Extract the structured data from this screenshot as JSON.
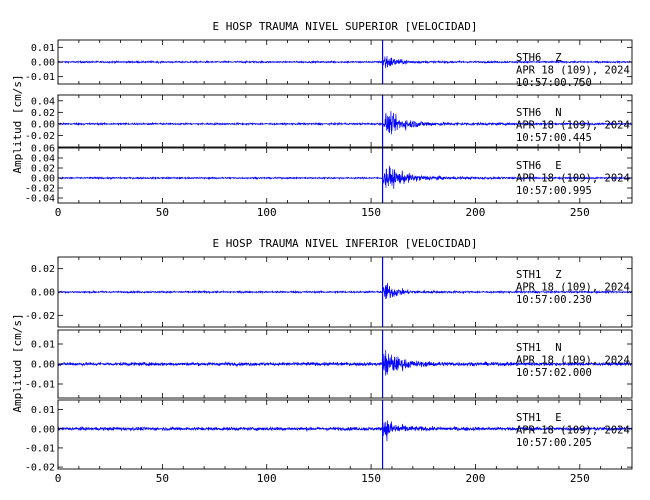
{
  "chart_data": [
    {
      "type": "line",
      "title": "E HOSP TRAUMA NIVEL SUPERIOR [VELOCIDAD]",
      "ylabel": "Amplitud [cm/s]",
      "xlabel": "",
      "xlim": [
        0,
        275
      ],
      "x_ticks": [
        0,
        50,
        100,
        150,
        200,
        250
      ],
      "x_tick_labels": [
        "0",
        "50",
        "100",
        "150",
        "200",
        "250"
      ],
      "line_color": "#0000ff",
      "grid": false,
      "event_x": 155.5,
      "panels": [
        {
          "station": "STH6",
          "component": "Z",
          "date": "APR 18 (109), 2024",
          "time": "10:57:00.750",
          "ylim": [
            -0.015,
            0.015
          ],
          "y_ticks": [
            0.01,
            0.0,
            -0.01
          ],
          "y_tick_labels": [
            "0.01",
            "0.00",
            "-0.01"
          ],
          "noise": 0.0009,
          "peak": 0.013,
          "onset": 155,
          "decay": 4.5
        },
        {
          "station": "STH6",
          "component": "N",
          "date": "APR 18 (109), 2024",
          "time": "10:57:00.445",
          "ylim": [
            -0.04,
            0.05
          ],
          "y_ticks": [
            0.04,
            0.02,
            0.0,
            -0.02
          ],
          "y_tick_labels": [
            "0.04",
            "0.02",
            "0.00",
            "-0.02"
          ],
          "noise": 0.0025,
          "peak": 0.036,
          "onset": 156,
          "decay": 9
        },
        {
          "station": "STH6",
          "component": "E",
          "date": "APR 18 (109), 2024",
          "time": "10:57:00.995",
          "ylim": [
            -0.05,
            0.06
          ],
          "y_ticks": [
            0.06,
            0.04,
            0.02,
            0.0,
            -0.02,
            -0.04
          ],
          "y_tick_labels": [
            "0.06",
            "0.04",
            "0.02",
            "0.00",
            "-0.02",
            "-0.04"
          ],
          "noise": 0.0025,
          "peak": 0.045,
          "onset": 155.5,
          "decay": 9
        }
      ]
    },
    {
      "type": "line",
      "title": "E HOSP TRAUMA NIVEL INFERIOR [VELOCIDAD]",
      "ylabel": "Amplitud [cm/s]",
      "xlabel": "",
      "xlim": [
        0,
        275
      ],
      "x_ticks": [
        0,
        50,
        100,
        150,
        200,
        250
      ],
      "x_tick_labels": [
        "0",
        "50",
        "100",
        "150",
        "200",
        "250"
      ],
      "line_color": "#0000ff",
      "grid": false,
      "event_x": 155.5,
      "panels": [
        {
          "station": "STH1",
          "component": "Z",
          "date": "APR 18 (109), 2024",
          "time": "10:57:00.230",
          "ylim": [
            -0.03,
            0.03
          ],
          "y_ticks": [
            0.02,
            0.0,
            -0.02
          ],
          "y_tick_labels": [
            "0.02",
            "0.00",
            "-0.02"
          ],
          "noise": 0.0012,
          "peak": 0.017,
          "onset": 155.5,
          "decay": 5
        },
        {
          "station": "STH1",
          "component": "N",
          "date": "APR 18 (109), 2024",
          "time": "10:57:02.000",
          "ylim": [
            -0.017,
            0.017
          ],
          "y_ticks": [
            0.01,
            0.0,
            -0.01
          ],
          "y_tick_labels": [
            "0.01",
            "0.00",
            "-0.01"
          ],
          "noise": 0.0014,
          "peak": 0.014,
          "onset": 155.5,
          "decay": 6
        },
        {
          "station": "STH1",
          "component": "E",
          "date": "APR 18 (109), 2024",
          "time": "10:57:00.205",
          "ylim": [
            -0.021,
            0.015
          ],
          "y_ticks": [
            0.01,
            0.0,
            -0.01,
            -0.02
          ],
          "y_tick_labels": [
            "0.01",
            "0.00",
            "-0.01",
            "-0.02"
          ],
          "noise": 0.0015,
          "peak": 0.011,
          "onset": 155.5,
          "decay": 5
        }
      ]
    }
  ]
}
